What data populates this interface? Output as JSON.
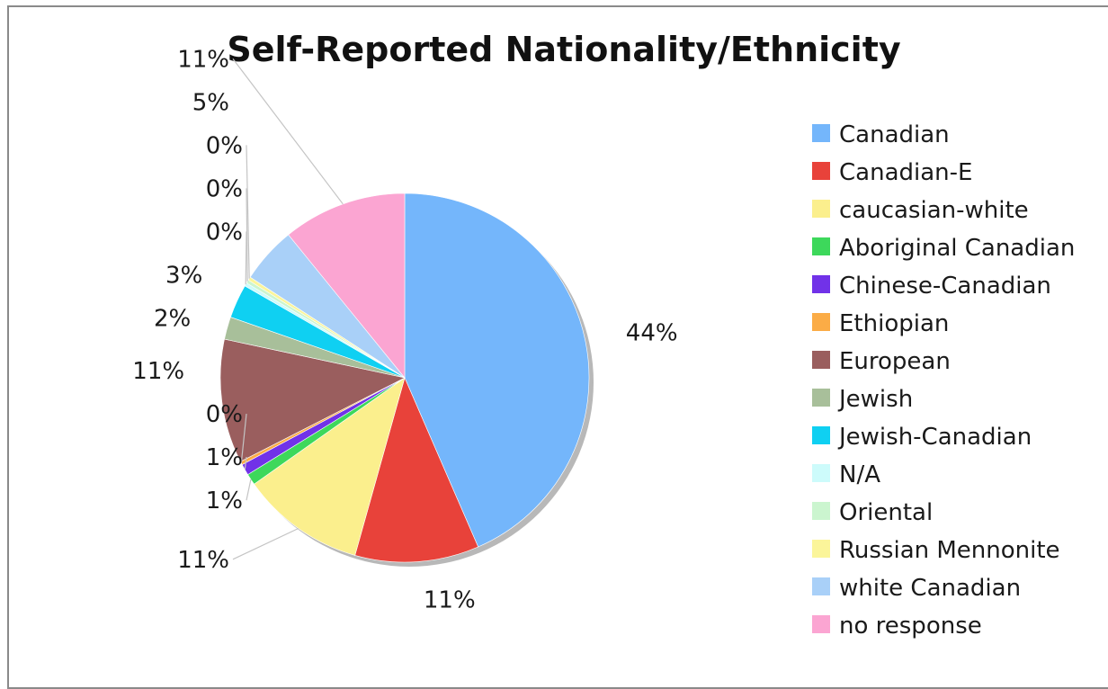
{
  "chart_data": {
    "type": "pie",
    "title": "Self-Reported Nationality/Ethnicity",
    "legend_position": "right",
    "slices": [
      {
        "name": "Canadian",
        "value": 44,
        "label": "44%",
        "color": "#74b6fb"
      },
      {
        "name": "Canadian-E",
        "value": 11,
        "label": "11%",
        "color": "#e8423a"
      },
      {
        "name": "caucasian-white",
        "value": 11,
        "label": "11%",
        "color": "#fbef8d"
      },
      {
        "name": "Aboriginal Canadian",
        "value": 1,
        "label": "1%",
        "color": "#3dd85b"
      },
      {
        "name": "Chinese-Canadian",
        "value": 1,
        "label": "1%",
        "color": "#7132e8"
      },
      {
        "name": "Ethiopian",
        "value": 0.3,
        "label": "0%",
        "color": "#fbac46"
      },
      {
        "name": "European",
        "value": 11,
        "label": "11%",
        "color": "#9a5e5e"
      },
      {
        "name": "Jewish",
        "value": 2,
        "label": "2%",
        "color": "#a8bf9a"
      },
      {
        "name": "Jewish-Canadian",
        "value": 3,
        "label": "3%",
        "color": "#0fd0f2"
      },
      {
        "name": "N/A",
        "value": 0.3,
        "label": "0%",
        "color": "#cdfbfb"
      },
      {
        "name": "Oriental",
        "value": 0.3,
        "label": "0%",
        "color": "#cbf5cf"
      },
      {
        "name": "Russian Mennonite",
        "value": 0.3,
        "label": "0%",
        "color": "#fbf59a"
      },
      {
        "name": "white Canadian",
        "value": 5,
        "label": "5%",
        "color": "#a9d0f8"
      },
      {
        "name": "no response",
        "value": 11,
        "label": "11%",
        "color": "#fba5d2"
      }
    ]
  }
}
